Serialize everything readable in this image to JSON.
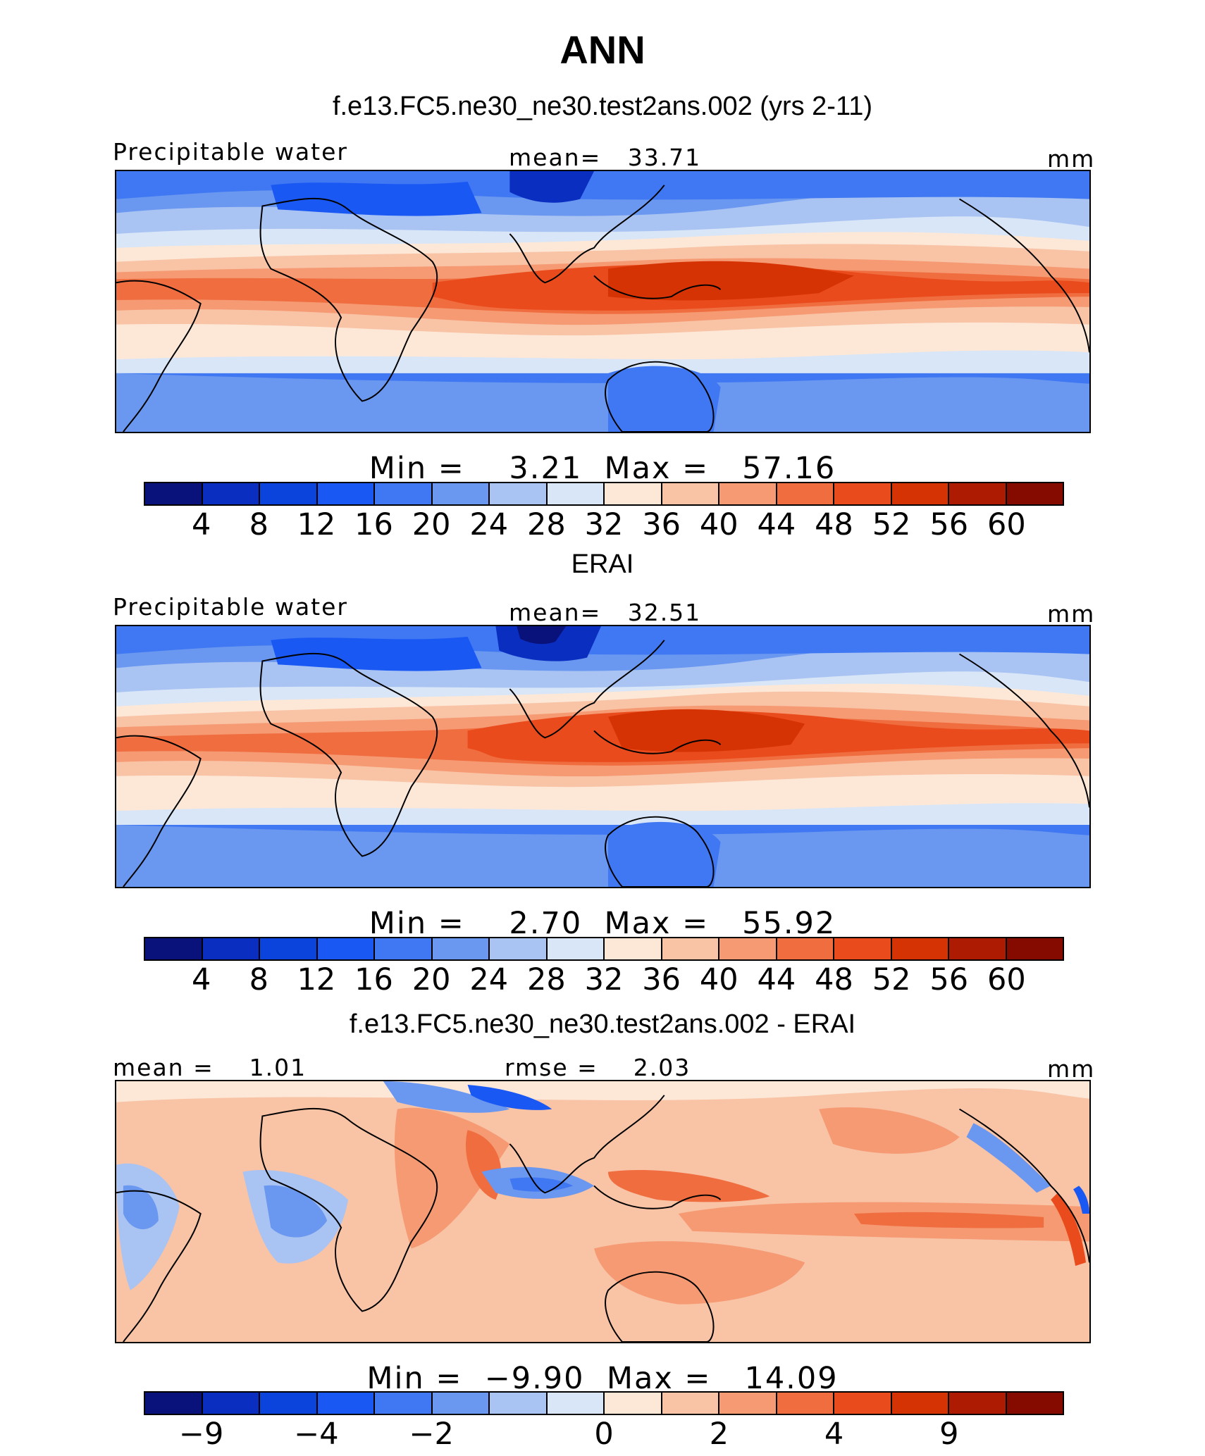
{
  "season": "ANN",
  "colorbar_colors": [
    "#08127a",
    "#0a2ec0",
    "#0b44dd",
    "#1a58f4",
    "#3f78f2",
    "#6a97ef",
    "#a9c3f3",
    "#d8e6f7",
    "#fde8d8",
    "#f9c3a6",
    "#f59a73",
    "#f06d40",
    "#e94b1c",
    "#d63305",
    "#ad1b02",
    "#850a00"
  ],
  "panels": [
    {
      "id": "model",
      "subtitle": "f.e13.FC5.ne30_ne30.test2ans.002 (yrs 2-11)",
      "left_label": "Precipitable water",
      "center_label": "mean=   33.71",
      "right_label": "mm",
      "minmax": "Min =    3.21  Max =   57.16",
      "ticks": [
        "4",
        "8",
        "12",
        "16",
        "20",
        "24",
        "28",
        "32",
        "36",
        "40",
        "44",
        "48",
        "52",
        "56",
        "60"
      ]
    },
    {
      "id": "obs",
      "subtitle": "ERAI",
      "left_label": "Precipitable water",
      "center_label": "mean=   32.51",
      "right_label": "mm",
      "minmax": "Min =    2.70  Max =   55.92",
      "ticks": [
        "4",
        "8",
        "12",
        "16",
        "20",
        "24",
        "28",
        "32",
        "36",
        "40",
        "44",
        "48",
        "52",
        "56",
        "60"
      ]
    },
    {
      "id": "diff",
      "subtitle": "f.e13.FC5.ne30_ne30.test2ans.002 - ERAI",
      "left_label": "mean =    1.01",
      "center_label": "rmse =    2.03",
      "right_label": "mm",
      "minmax": "Min =  −9.90  Max =   14.09",
      "ticks": [
        "−9",
        "−4",
        "−2",
        "0",
        "2",
        "4",
        "9"
      ]
    }
  ]
}
